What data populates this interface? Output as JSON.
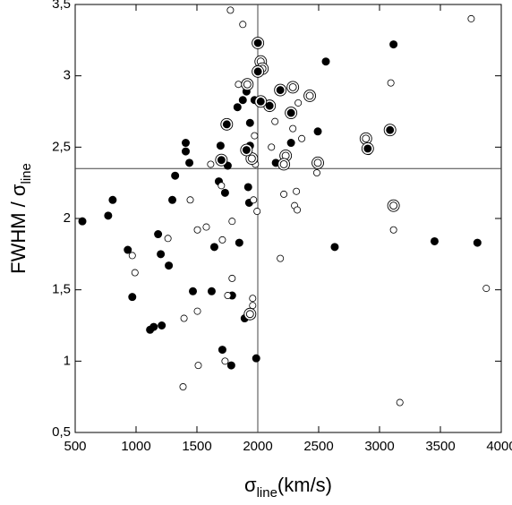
{
  "chart_data": {
    "type": "scatter",
    "xlabel": [
      "σ",
      "line",
      "(km/s)"
    ],
    "ylabel": [
      "FWHM / σ",
      "line"
    ],
    "xlim": [
      500,
      4000
    ],
    "ylim": [
      0.5,
      3.5
    ],
    "xticks": [
      500,
      1000,
      1500,
      2000,
      2500,
      3000,
      3500,
      4000
    ],
    "yticks": [
      {
        "value": 0.5,
        "label": "0,5"
      },
      1,
      {
        "value": 1.5,
        "label": "1,5"
      },
      2,
      {
        "value": 2.5,
        "label": "2,5"
      },
      3,
      {
        "value": 3.5,
        "label": "3,5"
      }
    ],
    "vlines": [
      2000
    ],
    "hlines": [
      2.35
    ],
    "series": [
      {
        "marker": "filled",
        "color": "#000000",
        "x": [
          559,
          771,
          808,
          932,
          969,
          1181,
          1203,
          1269,
          1298,
          1321,
          1115,
          1145,
          1211,
          1408,
          1408,
          1438,
          1467,
          1621,
          1643,
          1680,
          1694,
          1709,
          1731,
          1753,
          1789,
          1782,
          1833,
          1848,
          1877,
          1907,
          1921,
          1929,
          1936,
          1936,
          1951,
          1973,
          1987,
          1892,
          1951,
          2038,
          2148,
          2273,
          2493,
          2559,
          2632,
          3115,
          3452,
          3804
        ],
        "y": [
          1.98,
          2.02,
          2.13,
          1.78,
          1.45,
          1.89,
          1.75,
          1.67,
          2.13,
          2.3,
          1.22,
          1.24,
          1.25,
          2.53,
          2.47,
          2.39,
          1.49,
          1.49,
          1.8,
          2.26,
          2.51,
          1.08,
          2.18,
          2.37,
          1.46,
          0.97,
          2.78,
          1.83,
          2.83,
          2.89,
          2.22,
          2.11,
          2.67,
          2.51,
          2.43,
          2.83,
          1.02,
          1.3,
          1.32,
          2.82,
          2.39,
          2.53,
          2.61,
          3.1,
          1.8,
          3.22,
          1.84,
          1.83
        ]
      },
      {
        "marker": "open",
        "color": "#000000",
        "x": [
          1775,
          1877,
          3753,
          3093,
          1841,
          2141,
          2332,
          2288,
          2361,
          2112,
          1973,
          1980,
          1613,
          1701,
          1445,
          1965,
          1994,
          2317,
          2214,
          2302,
          2324,
          2485,
          2910,
          3115,
          1789,
          1709,
          1577,
          1504,
          1262,
          969,
          991,
          1958,
          2185,
          1789,
          1753,
          1958,
          1504,
          1394,
          1731,
          1511,
          1386,
          3167,
          3877
        ],
        "y": [
          3.46,
          3.36,
          3.4,
          2.95,
          2.94,
          2.68,
          2.81,
          2.63,
          2.56,
          2.5,
          2.58,
          2.38,
          2.38,
          2.23,
          2.13,
          2.13,
          2.05,
          2.19,
          2.17,
          2.09,
          2.06,
          2.32,
          2.47,
          1.92,
          1.98,
          1.85,
          1.94,
          1.92,
          1.86,
          1.74,
          1.62,
          1.39,
          1.72,
          1.58,
          1.46,
          1.44,
          1.35,
          1.3,
          1.0,
          0.97,
          0.82,
          0.71,
          1.51
        ]
      },
      {
        "marker": "ring-open",
        "color": "#000000",
        "x": [
          1914,
          2024,
          2038,
          2427,
          2288,
          2888,
          2493,
          3115,
          1951,
          2229,
          2214,
          1936
        ],
        "y": [
          2.94,
          3.1,
          3.05,
          2.86,
          2.92,
          2.56,
          2.39,
          2.09,
          2.42,
          2.44,
          2.38,
          1.33
        ]
      },
      {
        "marker": "ring-filled",
        "color": "#000000",
        "x": [
          2001,
          2001,
          1745,
          1701,
          1907,
          2185,
          2273,
          2097,
          3086,
          2903,
          2024
        ],
        "y": [
          3.23,
          3.03,
          2.66,
          2.41,
          2.48,
          2.9,
          2.74,
          2.79,
          2.62,
          2.49,
          2.82
        ]
      }
    ]
  }
}
